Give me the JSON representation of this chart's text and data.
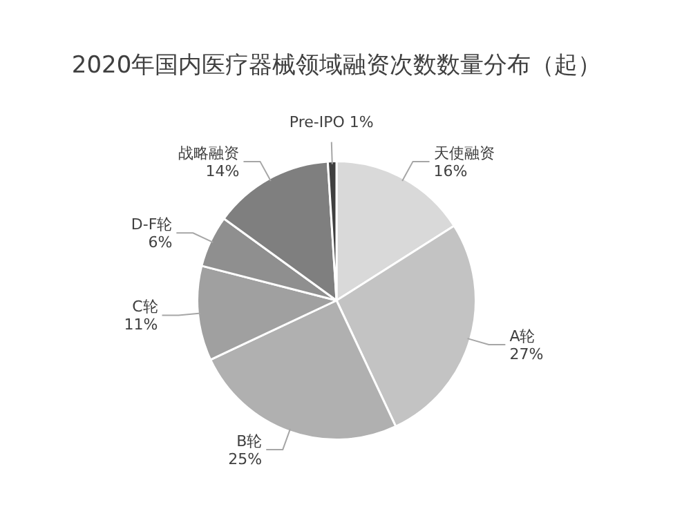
{
  "chart_data": {
    "type": "pie",
    "title": "2020年国内医疗器械领域融资次数数量分布（起）",
    "categories": [
      "天使融资",
      "A轮",
      "B轮",
      "C轮",
      "D-F轮",
      "战略融资",
      "Pre-IPO"
    ],
    "values": [
      16,
      27,
      25,
      11,
      6,
      14,
      1
    ],
    "value_labels": [
      "16%",
      "27%",
      "25%",
      "11%",
      "6%",
      "14%",
      "1%"
    ],
    "colors": [
      "#d9d9d9",
      "#c3c3c3",
      "#b0b0b0",
      "#a0a0a0",
      "#8f8f8f",
      "#7f7f7f",
      "#3f3f3f"
    ],
    "legend": false
  }
}
